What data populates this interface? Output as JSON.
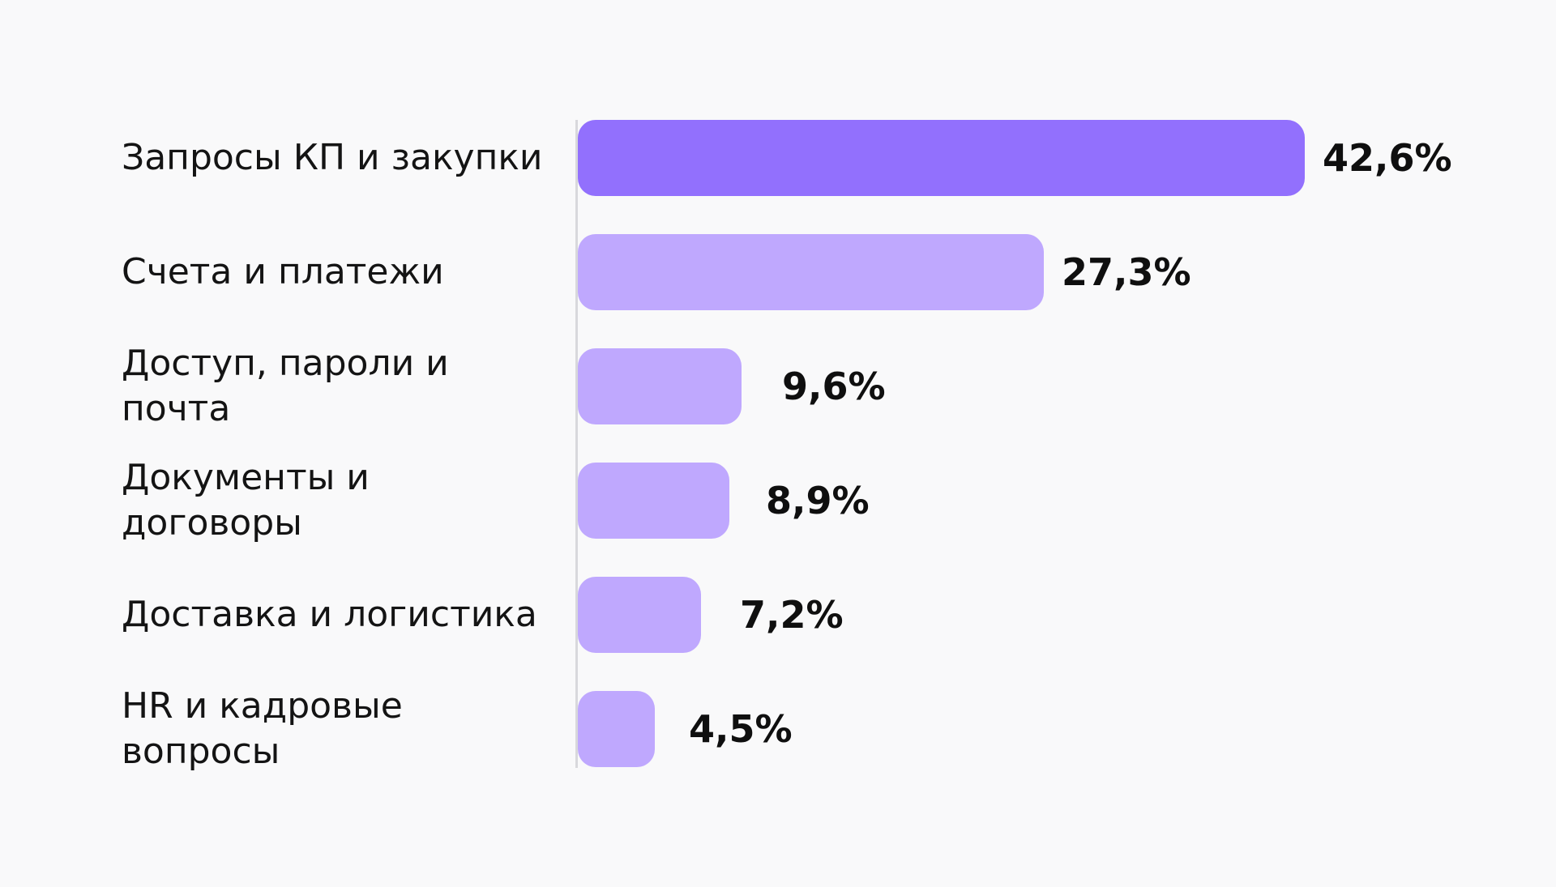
{
  "chart_data": {
    "type": "bar",
    "orientation": "horizontal",
    "categories": [
      "Запросы КП и закупки",
      "Счета и платежи",
      "Доступ, пароли и почта",
      "Документы и договоры",
      "Доставка и логистика",
      "HR и кадровые вопросы"
    ],
    "values": [
      42.6,
      27.3,
      9.6,
      8.9,
      7.2,
      4.5
    ],
    "value_labels": [
      "42,6%",
      "27,3%",
      "9,6%",
      "8,9%",
      "7,2%",
      "4,5%"
    ],
    "unit": "%",
    "xlim": [
      0,
      42.6
    ],
    "grid": false,
    "legend": "none",
    "colors": {
      "highlight": "#9270fd",
      "default": "#bfa8fe",
      "axis": "#d8d8dc",
      "text": "#141414",
      "background": "#f9f9fa"
    },
    "highlight_index": 0
  }
}
